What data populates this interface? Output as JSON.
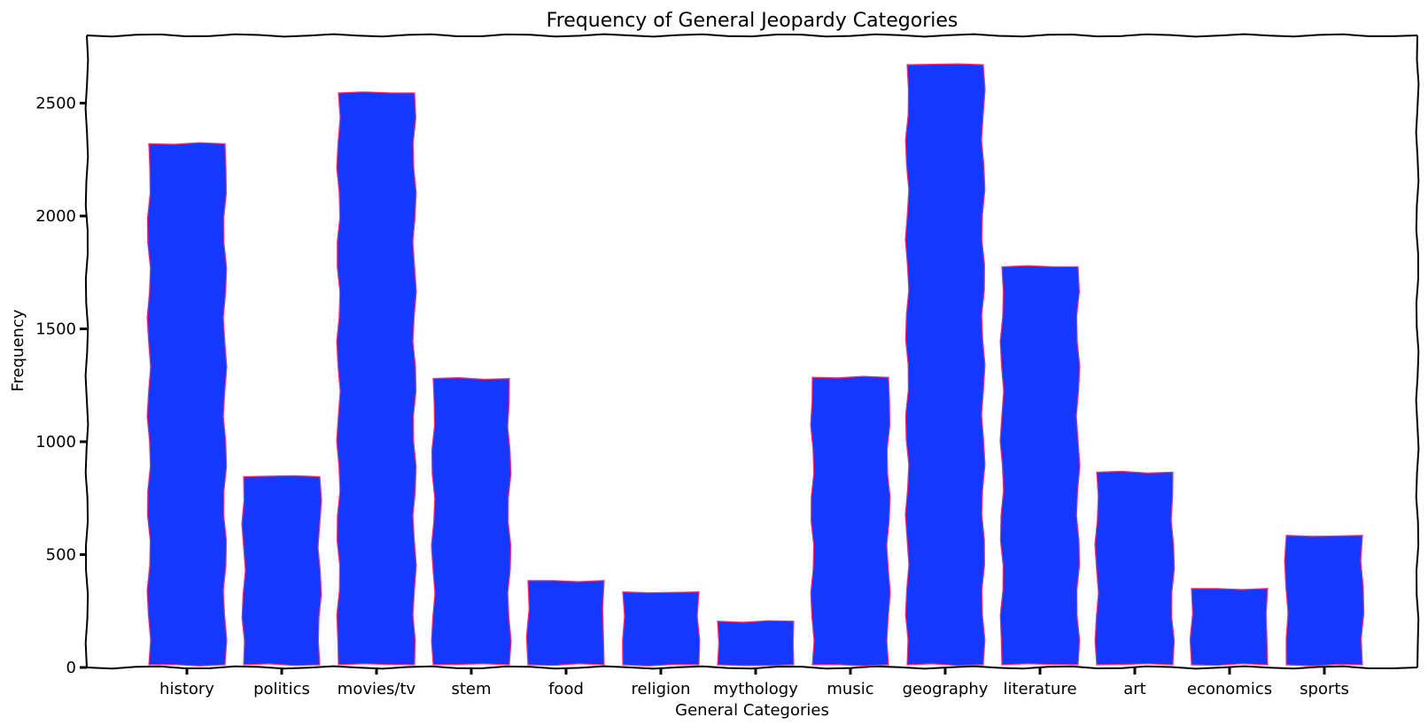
{
  "chart_data": {
    "type": "bar",
    "title": "Frequency of General Jeopardy Categories",
    "xlabel": "General Categories",
    "ylabel": "Frequency",
    "categories": [
      "history",
      "politics",
      "movies/tv",
      "stem",
      "food",
      "religion",
      "mythology",
      "music",
      "geography",
      "literature",
      "art",
      "economics",
      "sports"
    ],
    "values": [
      2320,
      845,
      2545,
      1280,
      385,
      335,
      205,
      1285,
      2670,
      1775,
      865,
      350,
      585
    ],
    "yticks": [
      0,
      500,
      1000,
      1500,
      2000,
      2500
    ],
    "ylim": [
      0,
      2800
    ],
    "grid": false,
    "legend": "none",
    "bar_color": "#1538ff",
    "edge_color": "#ff2d6e"
  }
}
